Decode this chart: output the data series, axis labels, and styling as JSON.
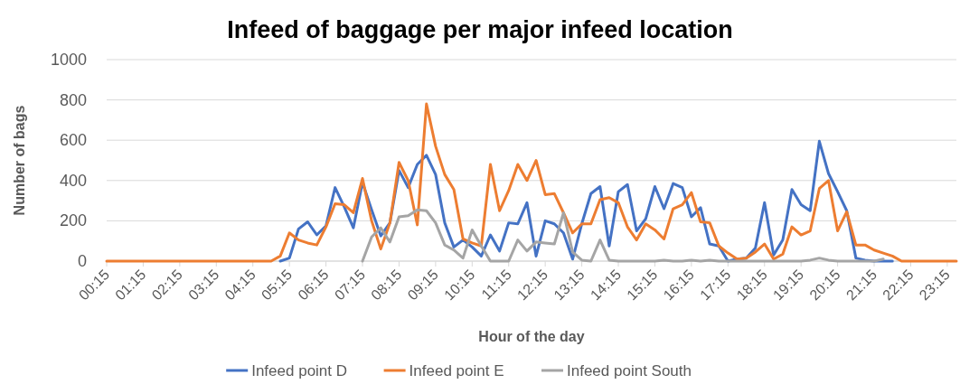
{
  "chart_data": {
    "type": "line",
    "title": "Infeed of baggage per major infeed location",
    "xlabel": "Hour of the day",
    "ylabel": "Number of bags",
    "categories": [
      "00:15",
      null,
      null,
      null,
      "01:15",
      null,
      null,
      null,
      "02:15",
      null,
      null,
      null,
      "03:15",
      null,
      null,
      null,
      "04:15",
      null,
      null,
      null,
      "05:15",
      null,
      null,
      null,
      "06:15",
      null,
      null,
      null,
      "07:15",
      null,
      null,
      null,
      "08:15",
      null,
      null,
      null,
      "09:15",
      null,
      null,
      null,
      "10:15",
      null,
      null,
      null,
      "11:15",
      null,
      null,
      null,
      "12:15",
      null,
      null,
      null,
      "13:15",
      null,
      null,
      null,
      "14:15",
      null,
      null,
      null,
      "15:15",
      null,
      null,
      null,
      "16:15",
      null,
      null,
      null,
      "17:15",
      null,
      null,
      null,
      "18:15",
      null,
      null,
      null,
      "19:15",
      null,
      null,
      null,
      "20:15",
      null,
      null,
      null,
      "21:15",
      null,
      null,
      null,
      "22:15",
      null,
      null,
      null,
      "23:15",
      null
    ],
    "series": [
      {
        "name": "Infeed point D",
        "color": "#4472c4",
        "values": [
          null,
          null,
          null,
          null,
          null,
          null,
          null,
          null,
          null,
          null,
          null,
          null,
          null,
          null,
          null,
          null,
          null,
          null,
          null,
          0,
          15,
          160,
          195,
          130,
          175,
          365,
          270,
          165,
          390,
          255,
          125,
          190,
          450,
          365,
          480,
          525,
          430,
          190,
          70,
          105,
          70,
          25,
          130,
          50,
          190,
          185,
          290,
          25,
          200,
          185,
          140,
          10,
          185,
          335,
          370,
          75,
          345,
          380,
          150,
          210,
          370,
          260,
          385,
          365,
          220,
          265,
          85,
          75,
          0,
          10,
          15,
          65,
          290,
          30,
          105,
          355,
          280,
          250,
          595,
          435,
          345,
          250,
          15,
          5,
          0,
          0,
          0,
          null,
          null,
          null,
          null,
          null,
          null,
          null
        ]
      },
      {
        "name": "Infeed point E",
        "color": "#ed7d31",
        "values": [
          0,
          0,
          0,
          0,
          0,
          0,
          0,
          0,
          0,
          0,
          0,
          0,
          0,
          0,
          0,
          0,
          0,
          0,
          0,
          25,
          140,
          105,
          90,
          80,
          170,
          285,
          280,
          240,
          410,
          200,
          60,
          190,
          490,
          400,
          180,
          780,
          570,
          430,
          355,
          110,
          90,
          75,
          480,
          250,
          350,
          480,
          400,
          500,
          330,
          335,
          240,
          140,
          185,
          185,
          305,
          315,
          290,
          170,
          105,
          185,
          155,
          110,
          260,
          280,
          340,
          195,
          190,
          75,
          40,
          10,
          15,
          45,
          85,
          10,
          35,
          170,
          130,
          150,
          360,
          400,
          150,
          245,
          80,
          80,
          55,
          40,
          25,
          0,
          0,
          0,
          0,
          0,
          0,
          0
        ]
      },
      {
        "name": "Infeed point South",
        "color": "#a5a5a5",
        "values": [
          null,
          null,
          null,
          null,
          null,
          null,
          null,
          null,
          null,
          null,
          null,
          null,
          null,
          null,
          null,
          null,
          null,
          null,
          null,
          null,
          null,
          null,
          null,
          null,
          null,
          null,
          null,
          null,
          0,
          120,
          165,
          95,
          220,
          225,
          255,
          250,
          190,
          80,
          55,
          15,
          155,
          75,
          0,
          0,
          0,
          105,
          50,
          95,
          90,
          85,
          240,
          45,
          5,
          0,
          105,
          5,
          0,
          0,
          0,
          0,
          0,
          5,
          0,
          0,
          5,
          0,
          5,
          0,
          0,
          0,
          0,
          0,
          0,
          0,
          0,
          0,
          0,
          5,
          15,
          5,
          0,
          0,
          0,
          0,
          0,
          10,
          null,
          null,
          null,
          null,
          null,
          null,
          null,
          null
        ]
      }
    ],
    "ylim": [
      0,
      1000
    ],
    "yticks": [
      0,
      200,
      400,
      600,
      800,
      1000
    ],
    "grid": "y",
    "legend": "bottom",
    "marker": "none",
    "line_style": "solid"
  }
}
